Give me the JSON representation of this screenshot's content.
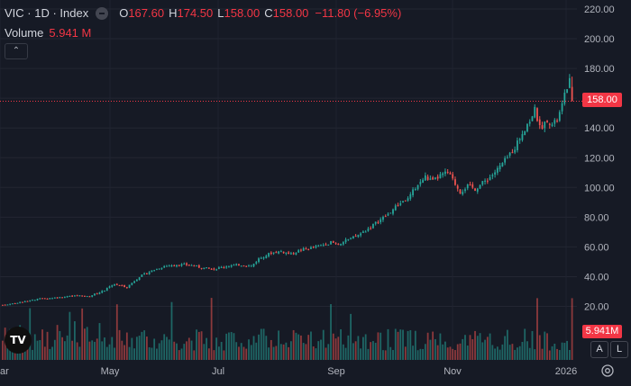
{
  "header": {
    "symbol": "VIC · 1D · Index",
    "o_label": "O",
    "o_value": "167.60",
    "h_label": "H",
    "h_value": "174.50",
    "l_label": "L",
    "l_value": "158.00",
    "c_label": "C",
    "c_value": "158.00",
    "change": "−11.80 (−6.95%)"
  },
  "volume": {
    "label": "Volume",
    "value": "5.941 M",
    "tag": "5.941M"
  },
  "price_tag": "158.00",
  "controls": {
    "collapse": "⌃",
    "auto": "A",
    "log": "L"
  },
  "logo_text": "TV",
  "colors": {
    "up": "#26a69a",
    "down": "#ef5350",
    "bg": "#161a25",
    "last_price": "#f23645"
  },
  "chart_data": {
    "type": "candlestick",
    "last_price": 158.0,
    "y_ticks": [
      20,
      40,
      60,
      80,
      100,
      120,
      140,
      160,
      180,
      200,
      220
    ],
    "y_tick_labels": [
      "20.00",
      "40.00",
      "60.00",
      "80.00",
      "100.00",
      "120.00",
      "140.00",
      "160.00",
      "180.00",
      "200.00",
      "220.00"
    ],
    "ylim": [
      20,
      220
    ],
    "x_ticks": [
      "ar",
      "May",
      "Jul",
      "Sep",
      "Nov",
      "2026"
    ],
    "close_path": [
      [
        0,
        21
      ],
      [
        8,
        23
      ],
      [
        15,
        25
      ],
      [
        22,
        26
      ],
      [
        30,
        27
      ],
      [
        35,
        27
      ],
      [
        40,
        30
      ],
      [
        45,
        35
      ],
      [
        50,
        33
      ],
      [
        55,
        40
      ],
      [
        60,
        44
      ],
      [
        65,
        47
      ],
      [
        70,
        48
      ],
      [
        75,
        48
      ],
      [
        80,
        46
      ],
      [
        85,
        45
      ],
      [
        90,
        47
      ],
      [
        95,
        48
      ],
      [
        100,
        47
      ],
      [
        103,
        52
      ],
      [
        108,
        56
      ],
      [
        112,
        57
      ],
      [
        116,
        55
      ],
      [
        120,
        58
      ],
      [
        126,
        60
      ],
      [
        132,
        63
      ],
      [
        135,
        62
      ],
      [
        138,
        64
      ],
      [
        142,
        67
      ],
      [
        146,
        71
      ],
      [
        150,
        76
      ],
      [
        155,
        82
      ],
      [
        160,
        90
      ],
      [
        163,
        92
      ],
      [
        166,
        100
      ],
      [
        170,
        107
      ],
      [
        173,
        104
      ],
      [
        176,
        108
      ],
      [
        179,
        110
      ],
      [
        181,
        105
      ],
      [
        184,
        97
      ],
      [
        187,
        101
      ],
      [
        190,
        99
      ],
      [
        193,
        103
      ],
      [
        196,
        107
      ],
      [
        199,
        112
      ],
      [
        202,
        118
      ],
      [
        206,
        127
      ],
      [
        210,
        140
      ],
      [
        212,
        145
      ],
      [
        214,
        152
      ],
      [
        216,
        140
      ],
      [
        218,
        143
      ],
      [
        219,
        146
      ],
      [
        221,
        142
      ],
      [
        223,
        145
      ],
      [
        225,
        155
      ],
      [
        227,
        168
      ],
      [
        228,
        172
      ],
      [
        229,
        158
      ]
    ],
    "volume_millions_max": 6.0
  }
}
